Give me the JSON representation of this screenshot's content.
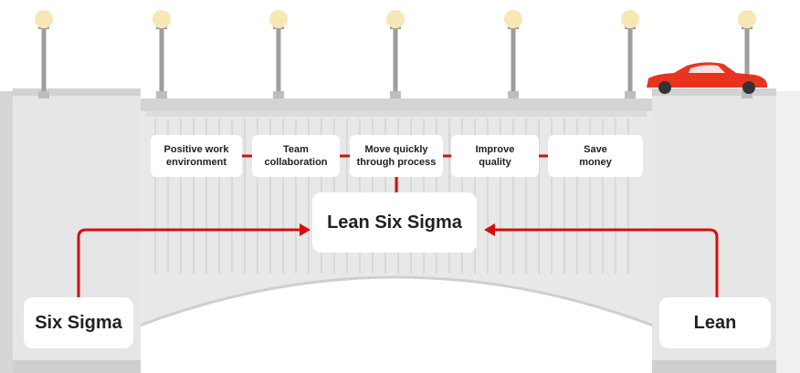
{
  "benefits": [
    "Positive work\nenvironment",
    "Team\ncollaboration",
    "Move quickly\nthrough process",
    "Improve\nquality",
    "Save\nmoney"
  ],
  "center_label": "Lean Six Sigma",
  "left_label": "Six Sigma",
  "right_label": "Lean",
  "colors": {
    "accent_red": "#d50f0f",
    "car_red": "#e8341f",
    "bridge_gray": "#e3e3e3",
    "lamp_bulb": "#f7e7b4"
  },
  "icons": [
    "street-lamp-icon",
    "car-icon",
    "arrow-right-icon",
    "arrow-left-icon"
  ]
}
